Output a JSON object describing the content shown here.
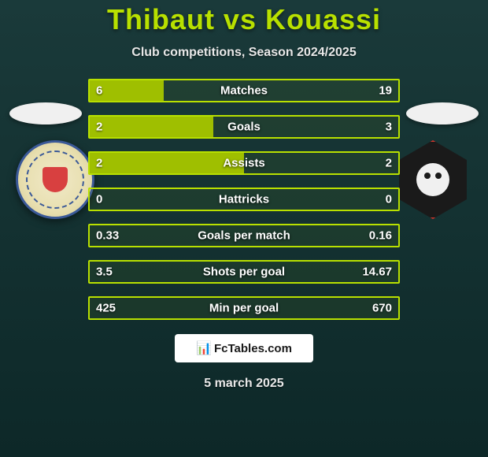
{
  "header": {
    "title": "Thibaut vs Kouassi",
    "subtitle": "Club competitions, Season 2024/2025",
    "title_color": "#b8e000"
  },
  "bars": {
    "accent_color": "#b8e000",
    "fill_color": "#9fbf00",
    "rows": [
      {
        "label": "Matches",
        "left": "6",
        "right": "19",
        "fill_pct": 24
      },
      {
        "label": "Goals",
        "left": "2",
        "right": "3",
        "fill_pct": 40
      },
      {
        "label": "Assists",
        "left": "2",
        "right": "2",
        "fill_pct": 50
      },
      {
        "label": "Hattricks",
        "left": "0",
        "right": "0",
        "fill_pct": 0
      },
      {
        "label": "Goals per match",
        "left": "0.33",
        "right": "0.16",
        "fill_pct": 0
      },
      {
        "label": "Shots per goal",
        "left": "3.5",
        "right": "14.67",
        "fill_pct": 0
      },
      {
        "label": "Min per goal",
        "left": "425",
        "right": "670",
        "fill_pct": 0
      }
    ]
  },
  "watermark": {
    "text": "FcTables.com"
  },
  "footer": {
    "date": "5 march 2025"
  }
}
